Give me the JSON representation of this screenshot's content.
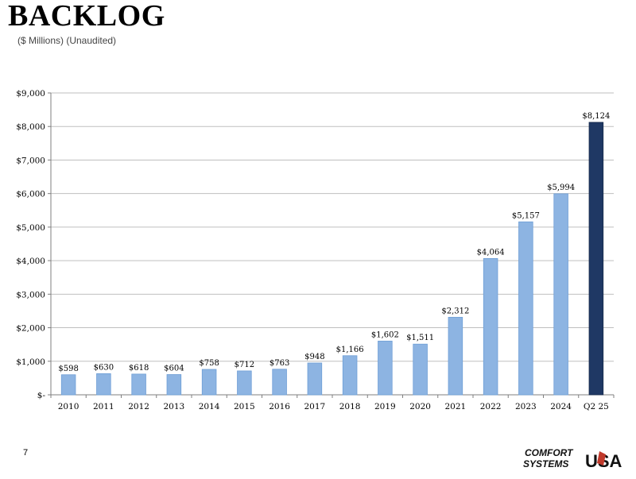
{
  "header": {
    "title": "BACKLOG",
    "subtitle": "($ Millions) (Unaudited)"
  },
  "footer": {
    "page_number": "7",
    "logo_line1": "COMFORT",
    "logo_line2": "SYSTEMS",
    "logo_usa": "USA"
  },
  "colors": {
    "bar_light": "#8DB4E2",
    "bar_dark": "#1F3864",
    "gridline": "#BFBFBF",
    "axis": "#7F7F7F"
  },
  "chart_data": {
    "type": "bar",
    "title": "",
    "xlabel": "",
    "ylabel": "",
    "categories": [
      "2010",
      "2011",
      "2012",
      "2013",
      "2014",
      "2015",
      "2016",
      "2017",
      "2018",
      "2019",
      "2020",
      "2021",
      "2022",
      "2023",
      "2024",
      "Q2 25"
    ],
    "values": [
      598,
      630,
      618,
      604,
      758,
      712,
      763,
      948,
      1166,
      1602,
      1511,
      2312,
      4064,
      5157,
      5994,
      8124
    ],
    "data_labels": [
      "$598",
      "$630",
      "$618",
      "$604",
      "$758",
      "$712",
      "$763",
      "$948",
      "$1,166",
      "$1,602",
      "$1,511",
      "$2,312",
      "$4,064",
      "$5,157",
      "$5,994",
      "$8,124"
    ],
    "highlight_last": true,
    "ylim": [
      0,
      9000
    ],
    "yticks": [
      0,
      1000,
      2000,
      3000,
      4000,
      5000,
      6000,
      7000,
      8000,
      9000
    ],
    "ytick_labels": [
      "$-",
      "$1,000",
      "$2,000",
      "$3,000",
      "$4,000",
      "$5,000",
      "$6,000",
      "$7,000",
      "$8,000",
      "$9,000"
    ],
    "grid": true,
    "legend": "none"
  }
}
